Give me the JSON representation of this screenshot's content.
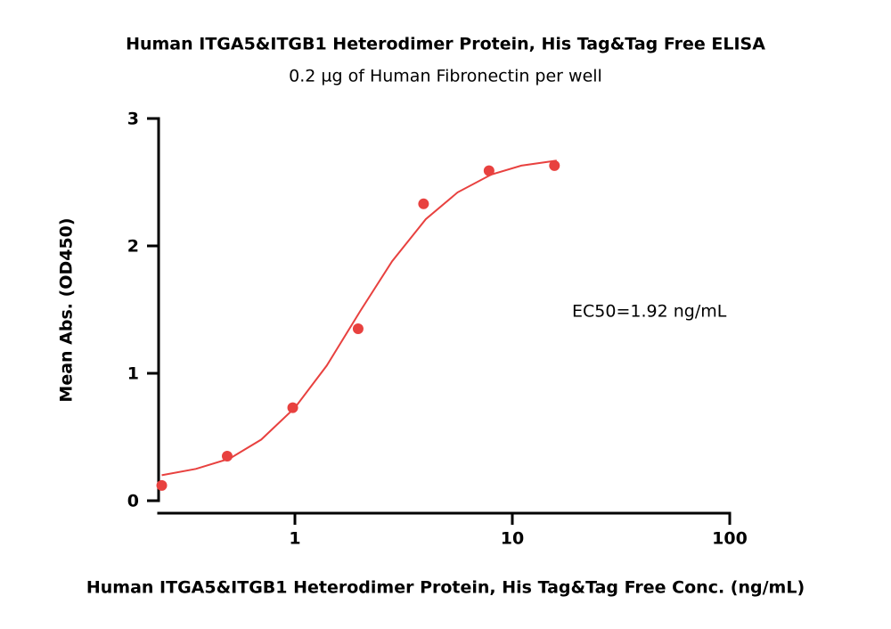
{
  "chart_data": {
    "type": "scatter",
    "title": "Human ITGA5&ITGB1 Heterodimer Protein, His Tag&Tag Free ELISA",
    "subtitle": "0.2 µg of Human Fibronectin per well",
    "x_label": "Human ITGA5&ITGB1 Heterodimer Protein, His Tag&Tag Free Conc. (ng/mL)",
    "y_label": "Mean Abs. (OD450)",
    "annotation": "EC50=1.92 ng/mL",
    "x_scale": "log",
    "xlim": [
      0.236,
      100
    ],
    "xticks": [
      1,
      10,
      100
    ],
    "ylim": [
      0,
      3
    ],
    "yticks": [
      0,
      1,
      2,
      3
    ],
    "series": [
      {
        "type": "scatter",
        "color": "#e8413f",
        "x": [
          0.244,
          0.488,
          0.977,
          1.953,
          3.906,
          7.813,
          15.625
        ],
        "values": [
          0.12,
          0.35,
          0.73,
          1.35,
          2.33,
          2.59,
          2.63
        ]
      },
      {
        "type": "line",
        "color": "#e8413f",
        "x": [
          0.244,
          0.35,
          0.5,
          0.7,
          1,
          1.4,
          2,
          2.8,
          4,
          5.6,
          8,
          11,
          16
        ],
        "values": [
          0.2,
          0.25,
          0.33,
          0.48,
          0.73,
          1.06,
          1.49,
          1.88,
          2.21,
          2.42,
          2.56,
          2.63,
          2.67
        ]
      }
    ]
  }
}
